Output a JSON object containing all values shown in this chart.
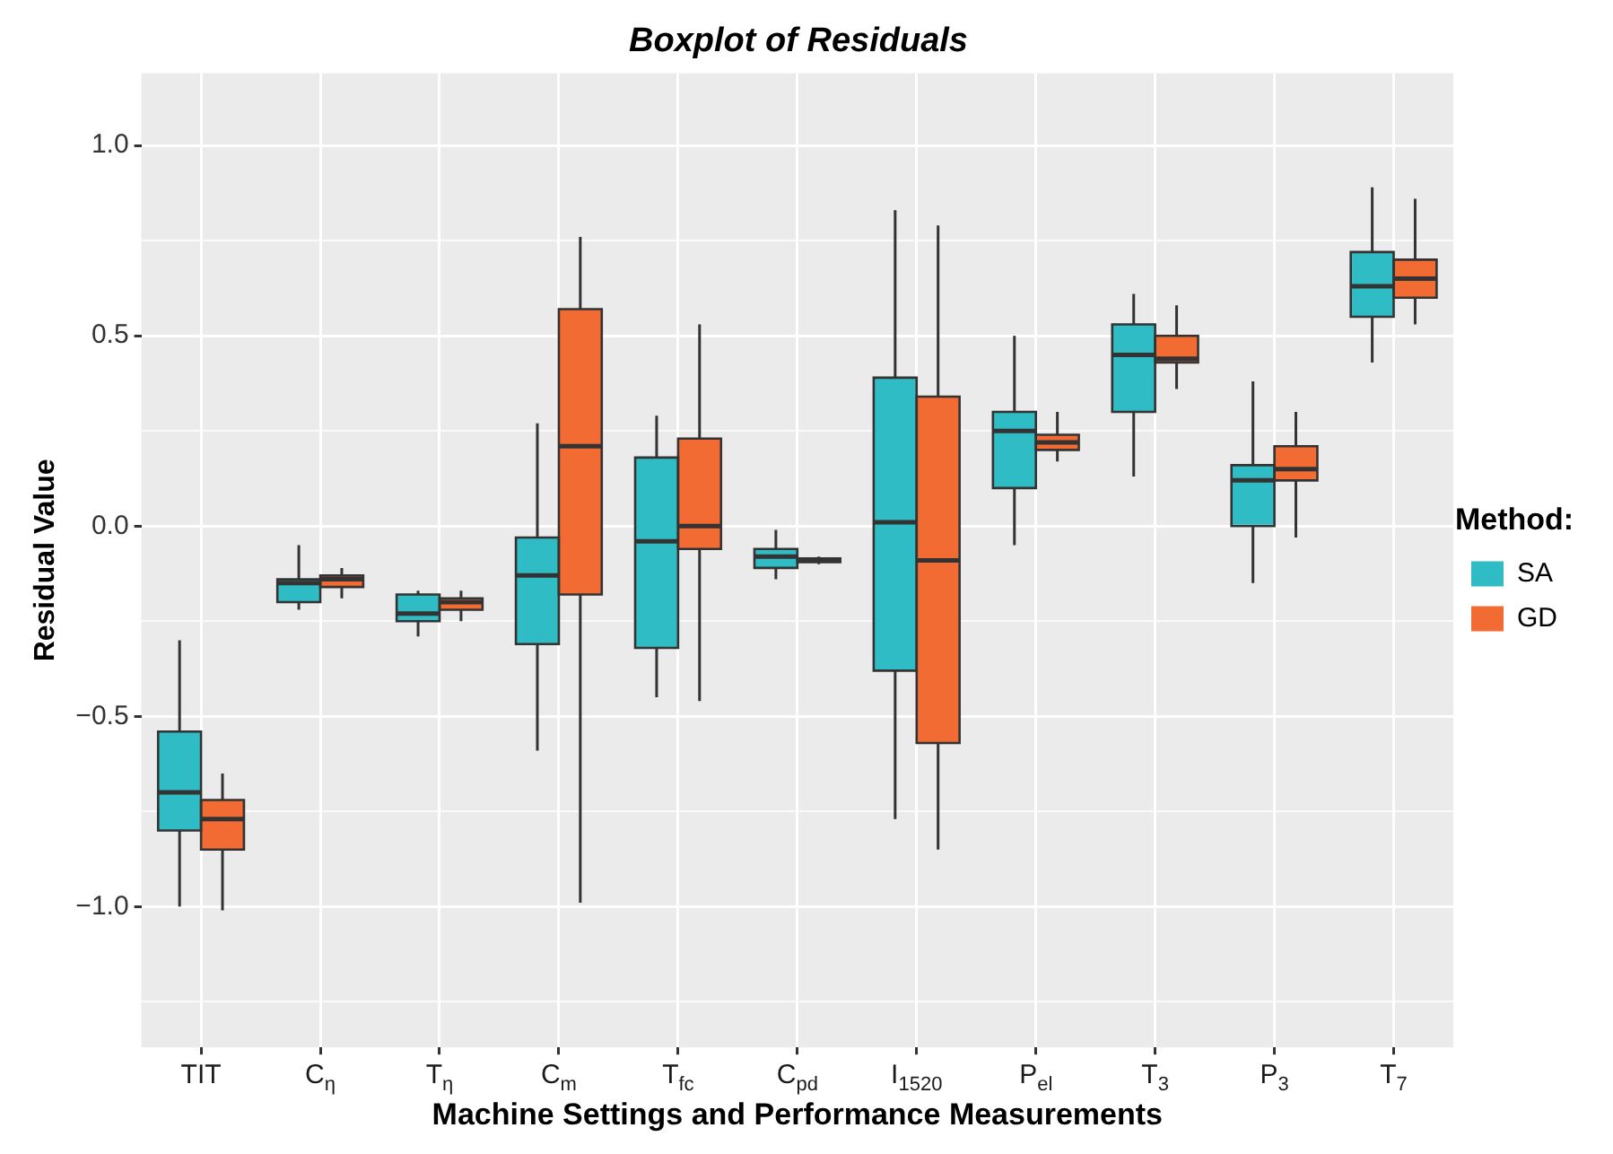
{
  "chart_data": {
    "type": "box",
    "title": "Boxplot of Residuals",
    "xlabel": "Machine Settings and Performance Measurements",
    "ylabel": "Residual Value",
    "legend_title": "Method:",
    "legend": "right",
    "grid": true,
    "categories": [
      "TIT",
      "C$_{η}$",
      "T$_{η}$",
      "C$_{m}$",
      "T$_{fc}$",
      "C$_{pd}$",
      "I$_{1520}$",
      "P$_{el}$",
      "T$_{3}$",
      "P$_{3}$",
      "T$_{7}$"
    ],
    "ylim": [
      -1.37,
      1.19
    ],
    "yticks": [
      {
        "value": -1.25,
        "label": null
      },
      {
        "value": -1,
        "label": "−1.0"
      },
      {
        "value": -0.75,
        "label": null
      },
      {
        "value": -0.5,
        "label": "−0.5"
      },
      {
        "value": -0.25,
        "label": null
      },
      {
        "value": 0,
        "label": "0.0"
      },
      {
        "value": 0.25,
        "label": null
      },
      {
        "value": 0.5,
        "label": "0.5"
      },
      {
        "value": 0.75,
        "label": null
      },
      {
        "value": 1,
        "label": "1.0"
      }
    ],
    "series": [
      {
        "name": "SA",
        "color": "#2fbcc4",
        "boxes": [
          {
            "low": -1.0,
            "q1": -0.8,
            "median": -0.7,
            "q3": -0.54,
            "high": -0.3
          },
          {
            "low": -0.22,
            "q1": -0.2,
            "median": -0.15,
            "q3": -0.14,
            "high": -0.05
          },
          {
            "low": -0.29,
            "q1": -0.25,
            "median": -0.23,
            "q3": -0.18,
            "high": -0.17
          },
          {
            "low": -0.59,
            "q1": -0.31,
            "median": -0.13,
            "q3": -0.03,
            "high": 0.27
          },
          {
            "low": -0.45,
            "q1": -0.32,
            "median": -0.04,
            "q3": 0.18,
            "high": 0.29
          },
          {
            "low": -0.14,
            "q1": -0.11,
            "median": -0.08,
            "q3": -0.06,
            "high": -0.01
          },
          {
            "low": -0.77,
            "q1": -0.38,
            "median": 0.01,
            "q3": 0.39,
            "high": 0.83
          },
          {
            "low": -0.05,
            "q1": 0.1,
            "median": 0.25,
            "q3": 0.3,
            "high": 0.5
          },
          {
            "low": 0.13,
            "q1": 0.3,
            "median": 0.45,
            "q3": 0.53,
            "high": 0.61
          },
          {
            "low": -0.15,
            "q1": 0.0,
            "median": 0.12,
            "q3": 0.16,
            "high": 0.38
          },
          {
            "low": 0.43,
            "q1": 0.55,
            "median": 0.63,
            "q3": 0.72,
            "high": 0.89
          }
        ]
      },
      {
        "name": "GD",
        "color": "#f26b33",
        "boxes": [
          {
            "low": -1.01,
            "q1": -0.85,
            "median": -0.77,
            "q3": -0.72,
            "high": -0.65
          },
          {
            "low": -0.19,
            "q1": -0.16,
            "median": -0.14,
            "q3": -0.13,
            "high": -0.11
          },
          {
            "low": -0.25,
            "q1": -0.22,
            "median": -0.2,
            "q3": -0.19,
            "high": -0.17
          },
          {
            "low": -0.99,
            "q1": -0.18,
            "median": 0.21,
            "q3": 0.57,
            "high": 0.76
          },
          {
            "low": -0.46,
            "q1": -0.06,
            "median": 0.0,
            "q3": 0.23,
            "high": 0.53
          },
          {
            "low": -0.1,
            "q1": -0.095,
            "median": -0.09,
            "q3": -0.085,
            "high": -0.08
          },
          {
            "low": -0.85,
            "q1": -0.57,
            "median": -0.09,
            "q3": 0.34,
            "high": 0.79
          },
          {
            "low": 0.17,
            "q1": 0.2,
            "median": 0.22,
            "q3": 0.24,
            "high": 0.3
          },
          {
            "low": 0.36,
            "q1": 0.43,
            "median": 0.44,
            "q3": 0.5,
            "high": 0.58
          },
          {
            "low": -0.03,
            "q1": 0.12,
            "median": 0.15,
            "q3": 0.21,
            "high": 0.3
          },
          {
            "low": 0.53,
            "q1": 0.6,
            "median": 0.65,
            "q3": 0.7,
            "high": 0.86
          }
        ]
      }
    ]
  }
}
